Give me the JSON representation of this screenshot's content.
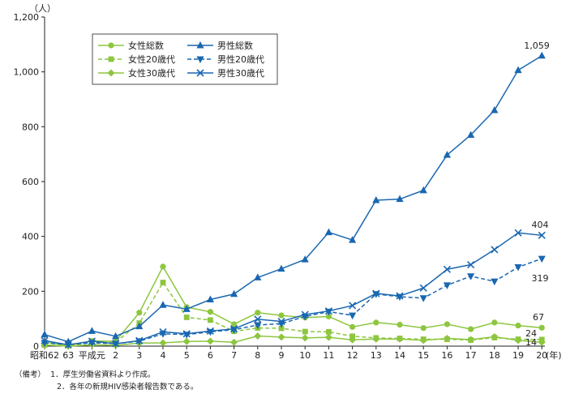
{
  "chart_data": {
    "type": "line",
    "y_unit_label": "（人）",
    "x_unit_label": "(年)",
    "ylim": [
      0,
      1200
    ],
    "y_ticks": [
      "0",
      "200",
      "400",
      "600",
      "800",
      "1,000",
      "1,200"
    ],
    "y_tick_values": [
      0,
      200,
      400,
      600,
      800,
      1000,
      1200
    ],
    "categories": [
      "昭和62",
      "63",
      "平成元",
      "2",
      "3",
      "4",
      "5",
      "6",
      "7",
      "8",
      "9",
      "10",
      "11",
      "12",
      "13",
      "14",
      "15",
      "16",
      "17",
      "18",
      "19",
      "20"
    ],
    "grid": false,
    "legend_position": "top-left",
    "series": [
      {
        "name": "女性総数",
        "color": "#8dc63f",
        "dash": false,
        "marker": "circle",
        "values": [
          14,
          3,
          19,
          18,
          122,
          290,
          142,
          125,
          80,
          122,
          112,
          104,
          108,
          70,
          86,
          78,
          66,
          80,
          62,
          86,
          75,
          67
        ]
      },
      {
        "name": "女性20歳代",
        "color": "#8dc63f",
        "dash": true,
        "marker": "square",
        "values": [
          4,
          2,
          13,
          14,
          84,
          232,
          105,
          95,
          54,
          66,
          65,
          53,
          52,
          36,
          30,
          28,
          25,
          25,
          22,
          31,
          25,
          24
        ]
      },
      {
        "name": "女性30歳代",
        "color": "#8dc63f",
        "dash": false,
        "marker": "diamond",
        "values": [
          4,
          0,
          5,
          3,
          11,
          12,
          17,
          18,
          14,
          37,
          33,
          30,
          32,
          23,
          26,
          26,
          21,
          28,
          24,
          34,
          21,
          14
        ]
      },
      {
        "name": "男性総数",
        "color": "#1a67b1",
        "dash": false,
        "marker": "triangle",
        "values": [
          42,
          16,
          55,
          36,
          72,
          150,
          135,
          170,
          190,
          250,
          282,
          316,
          415,
          387,
          532,
          536,
          568,
          697,
          770,
          860,
          1006,
          1059
        ]
      },
      {
        "name": "男性20歳代",
        "color": "#1a67b1",
        "dash": true,
        "marker": "triangle-down",
        "values": [
          12,
          6,
          12,
          9,
          18,
          45,
          42,
          52,
          60,
          77,
          82,
          108,
          126,
          112,
          190,
          180,
          175,
          222,
          255,
          236,
          288,
          319
        ]
      },
      {
        "name": "男性30歳代",
        "color": "#1a67b1",
        "dash": false,
        "marker": "x",
        "values": [
          20,
          5,
          18,
          9,
          20,
          52,
          45,
          55,
          63,
          98,
          90,
          115,
          128,
          148,
          192,
          183,
          212,
          280,
          297,
          352,
          413,
          404
        ]
      }
    ],
    "end_labels": [
      "1,059",
      "404",
      "319",
      "67",
      "24",
      "14"
    ]
  },
  "notes": {
    "prefix": "（備考）",
    "line1": "1．厚生労働省資料より作成。",
    "line2": "2．各年の新規HIV感染者報告数である。"
  }
}
